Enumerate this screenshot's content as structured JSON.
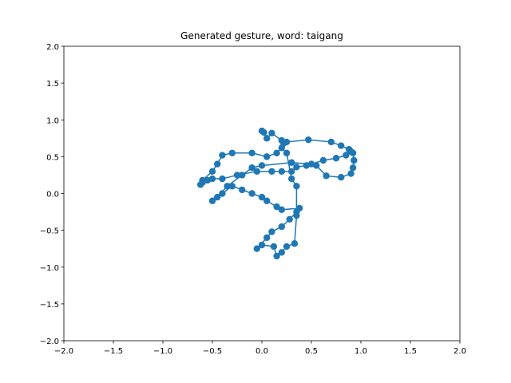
{
  "chart_data": {
    "type": "line",
    "title": "Generated gesture, word: taigang",
    "color": "#1f77b4",
    "marker": "o",
    "x": [
      0.0,
      0.02,
      0.05,
      0.1,
      0.2,
      0.22,
      0.25,
      0.47,
      0.7,
      0.8,
      0.88,
      0.92,
      0.93,
      0.92,
      0.9,
      0.8,
      0.65,
      0.55,
      0.45,
      0.35,
      0.3,
      0.2,
      0.1,
      -0.05,
      -0.25,
      -0.4,
      -0.5,
      -0.55,
      -0.6,
      -0.62,
      -0.6,
      -0.5,
      -0.45,
      -0.4,
      -0.3,
      -0.1,
      0.05,
      0.15,
      0.2,
      0.25,
      0.3,
      0.35,
      0.35,
      0.33,
      0.25,
      0.2,
      0.15,
      0.12,
      0.0,
      -0.05,
      0.05,
      0.1,
      0.2,
      0.28,
      0.35,
      0.38,
      0.2,
      0.15,
      0.05,
      0.0,
      -0.1,
      -0.2,
      -0.3,
      -0.4,
      -0.5,
      -0.45,
      -0.35,
      -0.2,
      -0.1,
      0.0,
      0.3,
      0.5,
      0.62,
      0.75,
      0.85,
      0.9
    ],
    "y": [
      0.85,
      0.83,
      0.75,
      0.82,
      0.72,
      0.68,
      0.7,
      0.73,
      0.7,
      0.65,
      0.6,
      0.55,
      0.45,
      0.35,
      0.27,
      0.22,
      0.24,
      0.38,
      0.38,
      0.36,
      0.3,
      0.3,
      0.3,
      0.3,
      0.25,
      0.2,
      0.2,
      0.18,
      0.15,
      0.12,
      0.18,
      0.3,
      0.4,
      0.52,
      0.55,
      0.55,
      0.5,
      0.55,
      0.62,
      0.55,
      0.2,
      0.1,
      -0.3,
      -0.68,
      -0.72,
      -0.8,
      -0.85,
      -0.72,
      -0.7,
      -0.75,
      -0.6,
      -0.52,
      -0.45,
      -0.35,
      -0.25,
      -0.2,
      -0.22,
      -0.18,
      -0.1,
      -0.05,
      0.0,
      0.05,
      0.1,
      0.0,
      -0.1,
      -0.05,
      0.1,
      0.25,
      0.35,
      0.38,
      0.42,
      0.4,
      0.45,
      0.48,
      0.52,
      0.57
    ],
    "xlim": [
      -2.0,
      2.0
    ],
    "ylim": [
      -2.0,
      2.0
    ],
    "xticks": [
      {
        "value": -2.0,
        "label": "−2.0"
      },
      {
        "value": -1.5,
        "label": "−1.5"
      },
      {
        "value": -1.0,
        "label": "−1.0"
      },
      {
        "value": -0.5,
        "label": "−0.5"
      },
      {
        "value": 0.0,
        "label": "0.0"
      },
      {
        "value": 0.5,
        "label": "0.5"
      },
      {
        "value": 1.0,
        "label": "1.0"
      },
      {
        "value": 1.5,
        "label": "1.5"
      },
      {
        "value": 2.0,
        "label": "2.0"
      }
    ],
    "yticks": [
      {
        "value": -2.0,
        "label": "−2.0"
      },
      {
        "value": -1.5,
        "label": "−1.5"
      },
      {
        "value": -1.0,
        "label": "−1.0"
      },
      {
        "value": -0.5,
        "label": "−0.5"
      },
      {
        "value": 0.0,
        "label": "0.0"
      },
      {
        "value": 0.5,
        "label": "0.5"
      },
      {
        "value": 1.0,
        "label": "1.0"
      },
      {
        "value": 1.5,
        "label": "1.5"
      },
      {
        "value": 2.0,
        "label": "2.0"
      }
    ]
  }
}
